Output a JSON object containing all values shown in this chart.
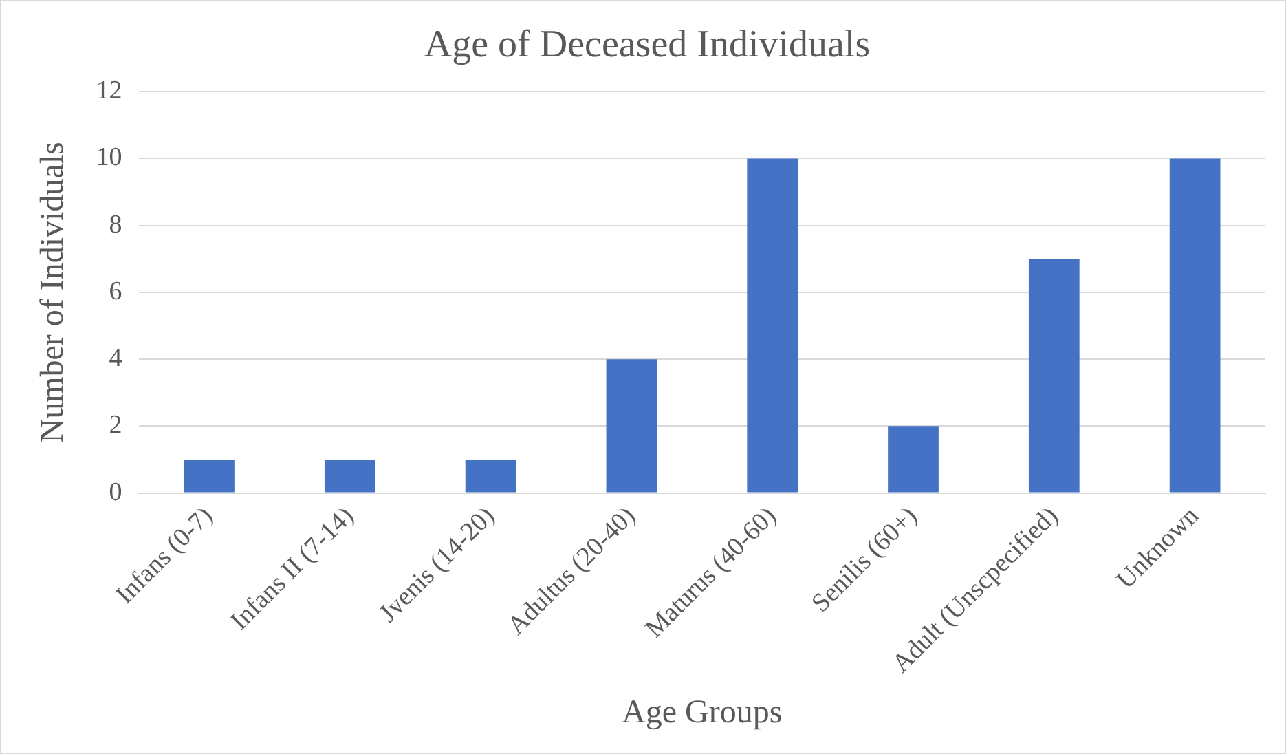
{
  "chart_data": {
    "type": "bar",
    "title": "Age of Deceased Individuals",
    "xlabel": "Age Groups",
    "ylabel": "Number of Individuals",
    "categories": [
      "Infans (0-7)",
      "Infans II (7-14)",
      "Jvenis (14-20)",
      "Adultus (20-40)",
      "Maturus (40-60)",
      "Senilis (60+)",
      "Adult (Unscpecified)",
      "Unknown"
    ],
    "values": [
      1,
      1,
      1,
      4,
      10,
      2,
      7,
      10
    ],
    "color": "#4472c4",
    "ylim": [
      0,
      12
    ],
    "yticks": [
      0,
      2,
      4,
      6,
      8,
      10,
      12
    ],
    "grid": "y",
    "legend": false
  }
}
